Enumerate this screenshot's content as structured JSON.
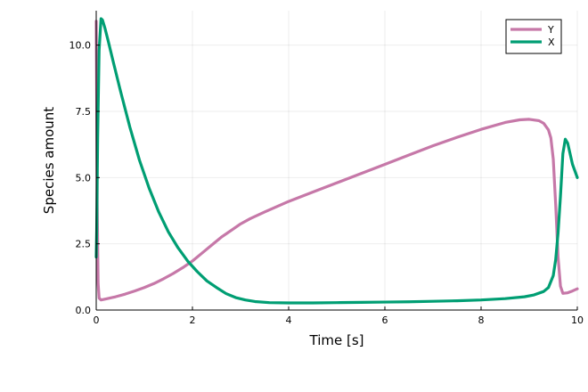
{
  "chart_data": {
    "type": "line",
    "title": "",
    "xlabel": "Time [s]",
    "ylabel": "Species amount",
    "xlim": [
      0,
      10
    ],
    "ylim": [
      0,
      11.3
    ],
    "x_ticks": [
      0,
      2,
      4,
      6,
      8,
      10
    ],
    "x_tick_labels": [
      "0",
      "2",
      "4",
      "6",
      "8",
      "10"
    ],
    "y_ticks": [
      0,
      2.5,
      5,
      7.5,
      10
    ],
    "y_tick_labels": [
      "0.0",
      "2.5",
      "5.0",
      "7.5",
      "10.0"
    ],
    "grid": true,
    "legend_position": "top-right",
    "series": [
      {
        "name": "Y",
        "color": "#c678a8",
        "x": [
          0,
          0.01,
          0.02,
          0.04,
          0.06,
          0.1,
          0.2,
          0.4,
          0.6,
          0.8,
          1.0,
          1.2,
          1.4,
          1.6,
          1.8,
          2.0,
          2.2,
          2.4,
          2.6,
          2.8,
          3.0,
          3.2,
          3.5,
          4.0,
          4.5,
          5.0,
          5.5,
          6.0,
          6.5,
          7.0,
          7.5,
          8.0,
          8.5,
          8.8,
          9.0,
          9.2,
          9.3,
          9.4,
          9.45,
          9.5,
          9.55,
          9.6,
          9.65,
          9.7,
          9.8,
          9.9,
          10.0
        ],
        "values": [
          10.9,
          8.0,
          4.0,
          1.0,
          0.45,
          0.38,
          0.42,
          0.5,
          0.6,
          0.72,
          0.85,
          1.0,
          1.18,
          1.38,
          1.6,
          1.85,
          2.15,
          2.45,
          2.75,
          3.0,
          3.25,
          3.45,
          3.7,
          4.1,
          4.45,
          4.8,
          5.15,
          5.5,
          5.85,
          6.2,
          6.52,
          6.82,
          7.08,
          7.18,
          7.2,
          7.15,
          7.05,
          6.8,
          6.5,
          5.7,
          4.0,
          2.0,
          0.9,
          0.63,
          0.65,
          0.72,
          0.8
        ]
      },
      {
        "name": "X",
        "color": "#009e73",
        "x": [
          0,
          0.01,
          0.03,
          0.06,
          0.1,
          0.13,
          0.18,
          0.25,
          0.35,
          0.5,
          0.7,
          0.9,
          1.1,
          1.3,
          1.5,
          1.7,
          1.9,
          2.1,
          2.3,
          2.5,
          2.7,
          2.9,
          3.1,
          3.3,
          3.6,
          4.0,
          4.5,
          5.0,
          5.5,
          6.0,
          6.5,
          7.0,
          7.5,
          8.0,
          8.5,
          8.9,
          9.1,
          9.3,
          9.4,
          9.5,
          9.55,
          9.6,
          9.65,
          9.7,
          9.75,
          9.8,
          9.85,
          9.9,
          10.0
        ],
        "values": [
          2.0,
          3.0,
          6.5,
          9.8,
          11.0,
          10.95,
          10.65,
          10.15,
          9.4,
          8.3,
          6.9,
          5.65,
          4.6,
          3.7,
          2.95,
          2.35,
          1.85,
          1.45,
          1.1,
          0.85,
          0.62,
          0.47,
          0.38,
          0.32,
          0.28,
          0.27,
          0.27,
          0.28,
          0.29,
          0.3,
          0.31,
          0.33,
          0.35,
          0.38,
          0.43,
          0.5,
          0.57,
          0.7,
          0.85,
          1.3,
          1.9,
          2.9,
          4.3,
          5.9,
          6.45,
          6.3,
          5.9,
          5.5,
          5.0
        ]
      }
    ]
  }
}
